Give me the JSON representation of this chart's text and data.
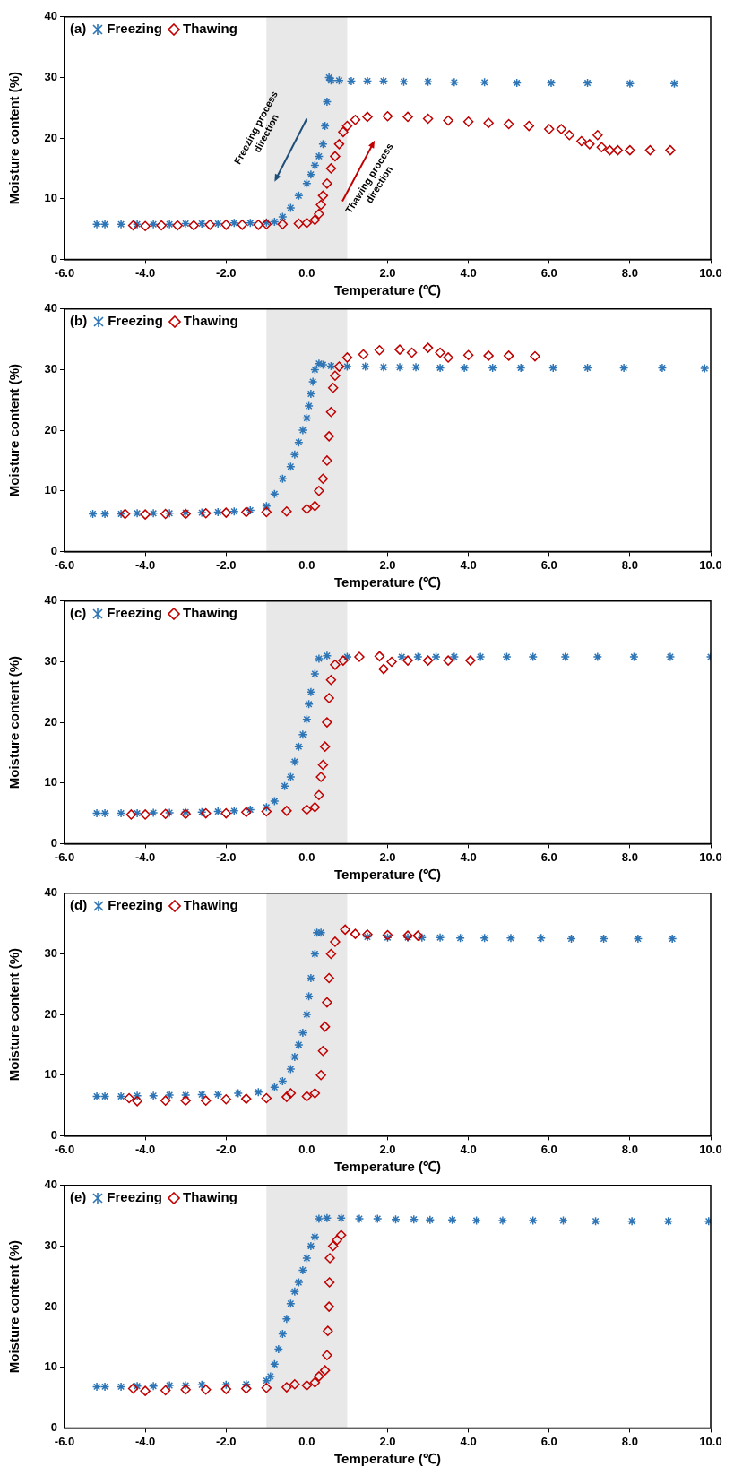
{
  "chart_data": [
    {
      "type": "scatter",
      "title": "(a)",
      "xlabel": "Temperature (℃)",
      "ylabel": "Moisture content (%)",
      "xlim": [
        -6,
        10
      ],
      "ylim": [
        0,
        40
      ],
      "xticks": [
        {
          "value": -6,
          "label": "-6.0"
        },
        {
          "value": -4,
          "label": "-4.0"
        },
        {
          "value": -2,
          "label": "-2.0"
        },
        {
          "value": 0,
          "label": "0.0"
        },
        {
          "value": 2,
          "label": "2.0"
        },
        {
          "value": 4,
          "label": "4.0"
        },
        {
          "value": 6,
          "label": "6.0"
        },
        {
          "value": 8,
          "label": "8.0"
        },
        {
          "value": 10,
          "label": "10.0"
        }
      ],
      "yticks": [
        0,
        10,
        20,
        30,
        40
      ],
      "legend": "top left",
      "bands": [
        {
          "axis": "x",
          "from": -1,
          "to": 1,
          "color": "#e8e8e8"
        }
      ],
      "annotations": [
        "Freezing process direction",
        "Thawing process direction"
      ],
      "series": [
        {
          "name": "Freezing",
          "color": "#2e75b6",
          "marker": "cross",
          "x": [
            -5.2,
            -5.0,
            -4.6,
            -4.2,
            -3.8,
            -3.4,
            -3.0,
            -2.6,
            -2.2,
            -1.8,
            -1.4,
            -1.0,
            -0.8,
            -0.6,
            -0.4,
            -0.2,
            0,
            0.1,
            0.2,
            0.3,
            0.4,
            0.45,
            0.5,
            0.55,
            0.6,
            0.8,
            1.1,
            1.5,
            1.9,
            2.4,
            3.0,
            3.65,
            4.4,
            5.2,
            6.05,
            6.95,
            8.0,
            9.1
          ],
          "values": [
            5.8,
            5.8,
            5.8,
            5.8,
            5.8,
            5.8,
            5.9,
            5.9,
            5.9,
            6.0,
            6.0,
            6.1,
            6.2,
            7,
            8.5,
            10.5,
            12.5,
            14,
            15.5,
            17,
            19,
            22,
            26,
            30,
            29.5,
            29.5,
            29.4,
            29.4,
            29.4,
            29.3,
            29.3,
            29.2,
            29.2,
            29.1,
            29.1,
            29.1,
            29.0,
            29.0
          ]
        },
        {
          "name": "Thawing",
          "color": "#c00000",
          "marker": "diamond",
          "x": [
            -4.3,
            -4.0,
            -3.6,
            -3.2,
            -2.8,
            -2.4,
            -2.0,
            -1.6,
            -1.2,
            -1.0,
            -0.6,
            -0.2,
            0,
            0.2,
            0.3,
            0.35,
            0.4,
            0.5,
            0.6,
            0.7,
            0.8,
            0.9,
            1.0,
            1.2,
            1.5,
            2.0,
            2.5,
            3.0,
            3.5,
            4.0,
            4.5,
            5.0,
            5.5,
            6.0,
            6.3,
            6.5,
            6.8,
            7.0,
            7.2,
            7.3,
            7.5,
            7.7,
            8.0,
            8.5,
            9.0
          ],
          "values": [
            5.6,
            5.5,
            5.6,
            5.6,
            5.6,
            5.7,
            5.7,
            5.7,
            5.7,
            5.8,
            5.8,
            5.9,
            6.0,
            6.5,
            7.5,
            9,
            10.5,
            12.5,
            15,
            17,
            19,
            21,
            22,
            23,
            23.5,
            23.6,
            23.5,
            23.2,
            22.9,
            22.7,
            22.5,
            22.3,
            22.0,
            21.5,
            21.5,
            20.5,
            19.5,
            19,
            20.5,
            18.5,
            18,
            18,
            18,
            18,
            18
          ]
        }
      ]
    },
    {
      "type": "scatter",
      "title": "(b)",
      "xlabel": "Temperature (℃)",
      "ylabel": "Moisture content (%)",
      "xlim": [
        -6,
        10
      ],
      "ylim": [
        0,
        40
      ],
      "xticks": [
        {
          "value": -6,
          "label": "-6.0"
        },
        {
          "value": -4,
          "label": "-4.0"
        },
        {
          "value": -2,
          "label": "-2.0"
        },
        {
          "value": 0,
          "label": "0.0"
        },
        {
          "value": 2,
          "label": "2.0"
        },
        {
          "value": 4,
          "label": "4.0"
        },
        {
          "value": 6,
          "label": "6.0"
        },
        {
          "value": 8,
          "label": "8.0"
        },
        {
          "value": 10,
          "label": "10.0"
        }
      ],
      "yticks": [
        0,
        10,
        20,
        30,
        40
      ],
      "legend": "top left",
      "bands": [
        {
          "axis": "x",
          "from": -1,
          "to": 1,
          "color": "#e8e8e8"
        }
      ],
      "series": [
        {
          "name": "Freezing",
          "color": "#2e75b6",
          "marker": "cross",
          "x": [
            -5.3,
            -5.0,
            -4.6,
            -4.2,
            -3.8,
            -3.4,
            -3.0,
            -2.6,
            -2.2,
            -1.8,
            -1.4,
            -1.0,
            -0.8,
            -0.6,
            -0.4,
            -0.3,
            -0.2,
            -0.1,
            0,
            0.05,
            0.1,
            0.15,
            0.2,
            0.3,
            0.4,
            0.6,
            1.0,
            1.45,
            1.9,
            2.3,
            2.7,
            3.3,
            3.9,
            4.6,
            5.3,
            6.1,
            6.95,
            7.85,
            8.8,
            9.85
          ],
          "values": [
            6.2,
            6.2,
            6.2,
            6.3,
            6.3,
            6.3,
            6.4,
            6.4,
            6.5,
            6.6,
            6.8,
            7.5,
            9.5,
            12,
            14,
            16,
            18,
            20,
            22,
            24,
            26,
            28,
            30,
            31,
            30.8,
            30.6,
            30.5,
            30.5,
            30.4,
            30.4,
            30.4,
            30.3,
            30.3,
            30.3,
            30.3,
            30.3,
            30.3,
            30.3,
            30.3,
            30.2
          ]
        },
        {
          "name": "Thawing",
          "color": "#c00000",
          "marker": "diamond",
          "x": [
            -4.5,
            -4.0,
            -3.5,
            -3.0,
            -2.5,
            -2.0,
            -1.5,
            -1.0,
            -0.5,
            0,
            0.2,
            0.3,
            0.4,
            0.5,
            0.55,
            0.6,
            0.65,
            0.7,
            0.8,
            1.0,
            1.4,
            1.8,
            2.3,
            2.6,
            3.0,
            3.3,
            3.5,
            4.0,
            4.5,
            5.0,
            5.65
          ],
          "values": [
            6.2,
            6.1,
            6.2,
            6.2,
            6.3,
            6.4,
            6.5,
            6.5,
            6.6,
            7,
            7.5,
            10,
            12,
            15,
            19,
            23,
            27,
            29,
            30.5,
            32,
            32.5,
            33.2,
            33.3,
            32.8,
            33.6,
            32.8,
            32,
            32.4,
            32.3,
            32.3,
            32.2
          ]
        }
      ]
    },
    {
      "type": "scatter",
      "title": "(c)",
      "xlabel": "Temperature (℃)",
      "ylabel": "Moisture content (%)",
      "xlim": [
        -6,
        10
      ],
      "ylim": [
        0,
        40
      ],
      "xticks": [
        {
          "value": -6,
          "label": "-6.0"
        },
        {
          "value": -4,
          "label": "-4.0"
        },
        {
          "value": -2,
          "label": "-2.0"
        },
        {
          "value": 0,
          "label": "0.0"
        },
        {
          "value": 2,
          "label": "2.0"
        },
        {
          "value": 4,
          "label": "4.0"
        },
        {
          "value": 6,
          "label": "6.0"
        },
        {
          "value": 8,
          "label": "8.0"
        },
        {
          "value": 10,
          "label": "10.0"
        }
      ],
      "yticks": [
        0,
        10,
        20,
        30,
        40
      ],
      "legend": "top left",
      "bands": [
        {
          "axis": "x",
          "from": -1,
          "to": 1,
          "color": "#e8e8e8"
        }
      ],
      "series": [
        {
          "name": "Freezing",
          "color": "#2e75b6",
          "marker": "cross",
          "x": [
            -5.2,
            -5.0,
            -4.6,
            -4.2,
            -3.8,
            -3.4,
            -3.0,
            -2.6,
            -2.2,
            -1.8,
            -1.4,
            -1.0,
            -0.8,
            -0.55,
            -0.4,
            -0.3,
            -0.2,
            -0.1,
            0,
            0.05,
            0.1,
            0.2,
            0.3,
            0.5,
            1.0,
            2.35,
            2.75,
            3.2,
            3.65,
            4.3,
            4.95,
            5.6,
            6.4,
            7.2,
            8.1,
            9.0,
            10.0
          ],
          "values": [
            5.0,
            5.0,
            5.0,
            5.0,
            5.1,
            5.1,
            5.2,
            5.2,
            5.3,
            5.4,
            5.6,
            6,
            7,
            9.5,
            11,
            13.5,
            16,
            18,
            20.5,
            23,
            25,
            28,
            30.5,
            31,
            30.8,
            30.8,
            30.8,
            30.8,
            30.8,
            30.8,
            30.8,
            30.8,
            30.8,
            30.8,
            30.8,
            30.8,
            30.8
          ]
        },
        {
          "name": "Thawing",
          "color": "#c00000",
          "marker": "diamond",
          "x": [
            -4.35,
            -4.0,
            -3.5,
            -3.0,
            -2.5,
            -2.0,
            -1.5,
            -1.0,
            -0.5,
            0,
            0.2,
            0.3,
            0.35,
            0.4,
            0.45,
            0.5,
            0.55,
            0.6,
            0.7,
            0.9,
            1.3,
            1.8,
            1.9,
            2.1,
            2.5,
            3.0,
            3.5,
            4.05
          ],
          "values": [
            4.8,
            4.8,
            4.9,
            4.9,
            5.0,
            5.0,
            5.2,
            5.3,
            5.4,
            5.6,
            6,
            8,
            11,
            13,
            16,
            20,
            24,
            27,
            29.5,
            30.2,
            30.8,
            30.9,
            28.8,
            30,
            30.2,
            30.2,
            30.2,
            30.2
          ]
        }
      ]
    },
    {
      "type": "scatter",
      "title": "(d)",
      "xlabel": "Temperature (℃)",
      "ylabel": "Moisture content (%)",
      "xlim": [
        -6,
        10
      ],
      "ylim": [
        0,
        40
      ],
      "xticks": [
        {
          "value": -6,
          "label": "-6.0"
        },
        {
          "value": -4,
          "label": "-4.0"
        },
        {
          "value": -2,
          "label": "-2.0"
        },
        {
          "value": 0,
          "label": "0.0"
        },
        {
          "value": 2,
          "label": "2.0"
        },
        {
          "value": 4,
          "label": "4.0"
        },
        {
          "value": 6,
          "label": "6.0"
        },
        {
          "value": 8,
          "label": "8.0"
        },
        {
          "value": 10,
          "label": "10.0"
        }
      ],
      "yticks": [
        0,
        10,
        20,
        30,
        40
      ],
      "legend": "top left",
      "bands": [
        {
          "axis": "x",
          "from": -1,
          "to": 1,
          "color": "#e8e8e8"
        }
      ],
      "series": [
        {
          "name": "Freezing",
          "color": "#2e75b6",
          "marker": "cross",
          "x": [
            -5.2,
            -5.0,
            -4.6,
            -4.2,
            -3.8,
            -3.4,
            -3.0,
            -2.6,
            -2.2,
            -1.7,
            -1.2,
            -0.8,
            -0.6,
            -0.4,
            -0.3,
            -0.2,
            -0.1,
            0,
            0.05,
            0.1,
            0.2,
            0.25,
            0.35,
            1.5,
            2.0,
            2.5,
            2.85,
            3.3,
            3.8,
            4.4,
            5.05,
            5.8,
            6.55,
            7.35,
            8.2,
            9.05
          ],
          "values": [
            6.5,
            6.5,
            6.5,
            6.6,
            6.6,
            6.7,
            6.7,
            6.8,
            6.8,
            7,
            7.2,
            8,
            9,
            11,
            13,
            15,
            17,
            20,
            23,
            26,
            30,
            33.5,
            33.5,
            32.8,
            32.7,
            32.7,
            32.7,
            32.7,
            32.6,
            32.6,
            32.6,
            32.6,
            32.5,
            32.5,
            32.5,
            32.5
          ]
        },
        {
          "name": "Thawing",
          "color": "#c00000",
          "marker": "diamond",
          "x": [
            -4.4,
            -4.2,
            -3.5,
            -3.0,
            -2.5,
            -2.0,
            -1.5,
            -1.0,
            -0.5,
            -0.4,
            0,
            0.2,
            0.35,
            0.4,
            0.45,
            0.5,
            0.55,
            0.6,
            0.7,
            0.95,
            1.2,
            1.5,
            2.0,
            2.5,
            2.75
          ],
          "values": [
            6.2,
            5.7,
            5.8,
            5.8,
            5.8,
            6.0,
            6.1,
            6.2,
            6.4,
            7,
            6.5,
            7,
            10,
            14,
            18,
            22,
            26,
            30,
            32,
            34,
            33.3,
            33.2,
            33.1,
            33.0,
            33.0
          ]
        }
      ]
    },
    {
      "type": "scatter",
      "title": "(e)",
      "xlabel": "Temperature (℃)",
      "ylabel": "Moisture content (%)",
      "xlim": [
        -6,
        10
      ],
      "ylim": [
        0,
        40
      ],
      "xticks": [
        {
          "value": -6,
          "label": "-6.0"
        },
        {
          "value": -4,
          "label": "-4.0"
        },
        {
          "value": -2,
          "label": "-2.0"
        },
        {
          "value": 0,
          "label": "0.0"
        },
        {
          "value": 2,
          "label": "2.0"
        },
        {
          "value": 4,
          "label": "4.0"
        },
        {
          "value": 6,
          "label": "6.0"
        },
        {
          "value": 8,
          "label": "8.0"
        },
        {
          "value": 10,
          "label": "10.0"
        }
      ],
      "yticks": [
        0,
        10,
        20,
        30,
        40
      ],
      "legend": "top left",
      "bands": [
        {
          "axis": "x",
          "from": -1,
          "to": 1,
          "color": "#e8e8e8"
        }
      ],
      "series": [
        {
          "name": "Freezing",
          "color": "#2e75b6",
          "marker": "cross",
          "x": [
            -5.2,
            -5.0,
            -4.6,
            -4.2,
            -3.8,
            -3.4,
            -3.0,
            -2.6,
            -2.0,
            -1.5,
            -1.0,
            -0.9,
            -0.8,
            -0.7,
            -0.6,
            -0.5,
            -0.4,
            -0.3,
            -0.2,
            -0.1,
            0,
            0.1,
            0.2,
            0.3,
            0.5,
            0.85,
            1.3,
            1.75,
            2.2,
            2.65,
            3.05,
            3.6,
            4.2,
            4.85,
            5.6,
            6.35,
            7.15,
            8.05,
            8.95,
            9.95
          ],
          "values": [
            6.8,
            6.8,
            6.8,
            6.9,
            6.9,
            7.0,
            7.0,
            7.1,
            7.1,
            7.2,
            7.8,
            8.5,
            10.5,
            13,
            15.5,
            18,
            20.5,
            22.5,
            24,
            26,
            28,
            30,
            31.5,
            34.5,
            34.6,
            34.6,
            34.5,
            34.5,
            34.4,
            34.4,
            34.3,
            34.3,
            34.2,
            34.2,
            34.2,
            34.2,
            34.1,
            34.1,
            34.1,
            34.1
          ]
        },
        {
          "name": "Thawing",
          "color": "#c00000",
          "marker": "diamond",
          "x": [
            -4.3,
            -4.0,
            -3.5,
            -3.0,
            -2.5,
            -2.0,
            -1.5,
            -1.0,
            -0.5,
            -0.3,
            0,
            0.2,
            0.3,
            0.45,
            0.5,
            0.52,
            0.55,
            0.56,
            0.57,
            0.65,
            0.75,
            0.85
          ],
          "values": [
            6.5,
            6.1,
            6.2,
            6.3,
            6.3,
            6.4,
            6.5,
            6.6,
            6.7,
            7.2,
            7,
            7.5,
            8.5,
            9.5,
            12,
            16,
            20,
            24,
            28,
            30,
            31,
            31.8
          ]
        }
      ]
    }
  ]
}
